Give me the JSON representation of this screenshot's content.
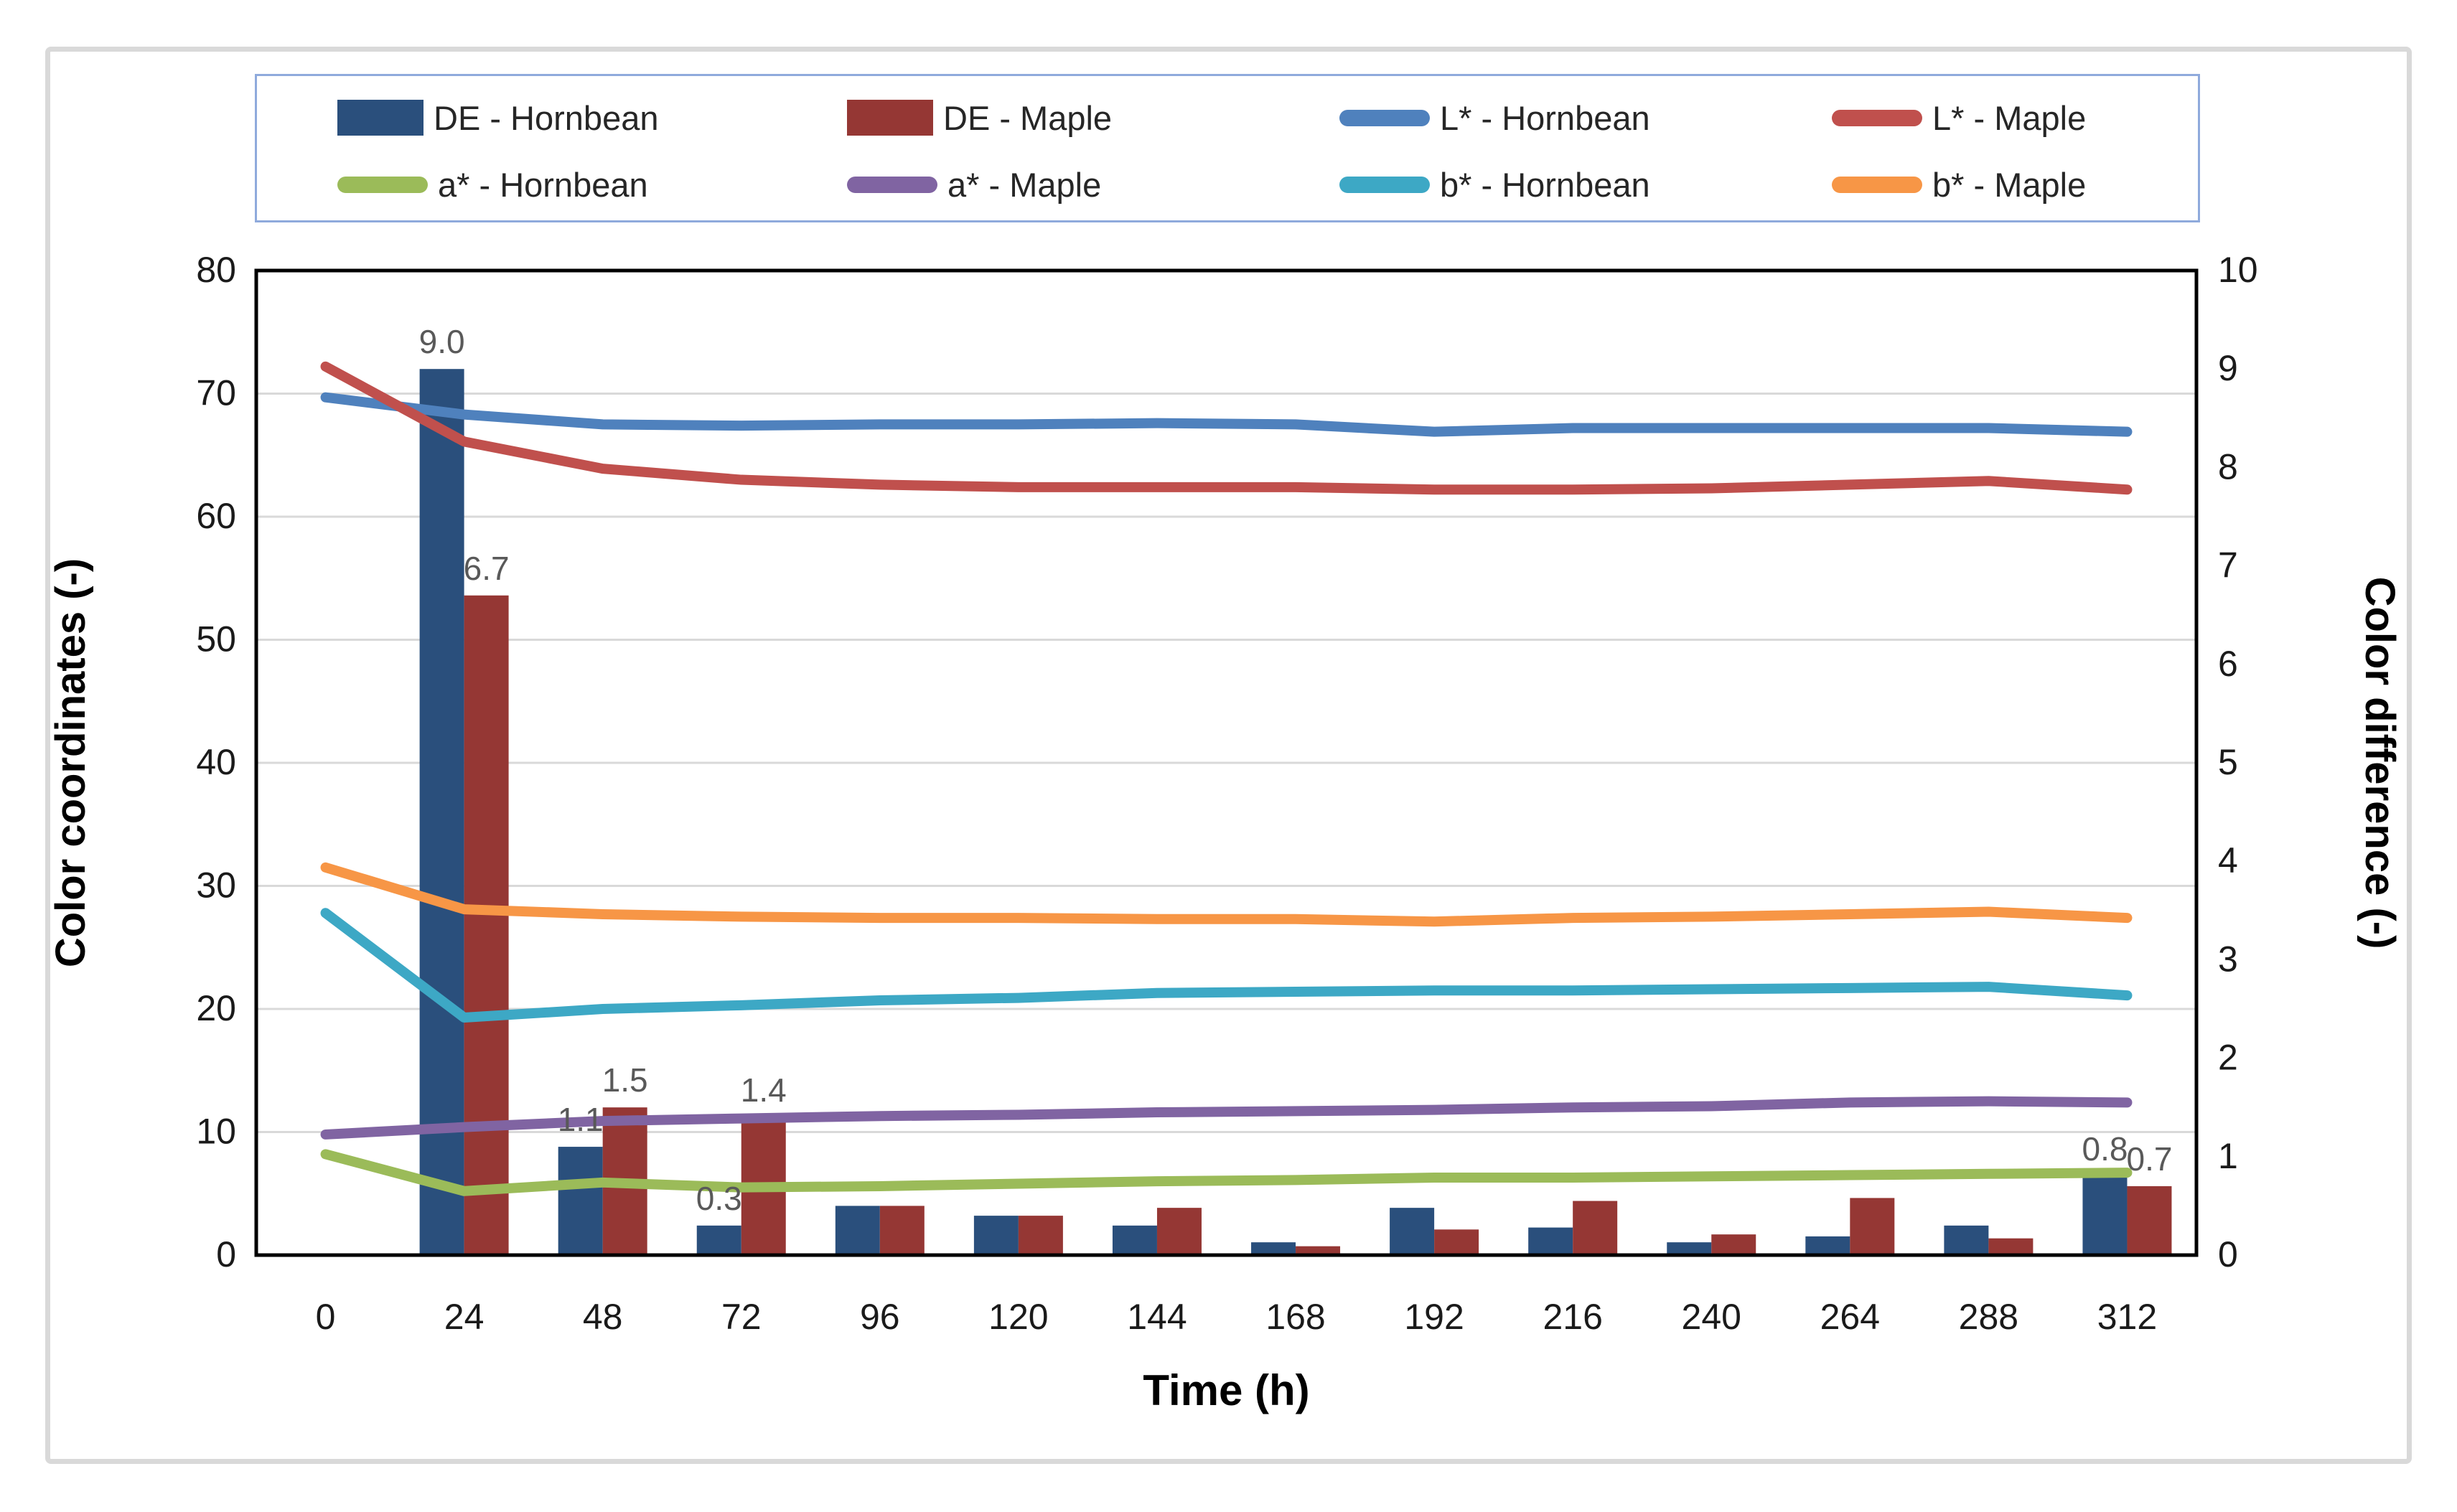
{
  "chart_data": {
    "type": "combo-bar-line",
    "x_axis": {
      "title": "Time (h)",
      "categories": [
        "0",
        "24",
        "48",
        "72",
        "96",
        "120",
        "144",
        "168",
        "192",
        "216",
        "240",
        "264",
        "288",
        "312"
      ]
    },
    "left_axis": {
      "title": "Color coordinates (-)",
      "min": 0,
      "max": 80,
      "step": 10
    },
    "right_axis": {
      "title": "Color difference (-)",
      "min": 0,
      "max": 10,
      "step": 1
    },
    "grid": "horizontal-on",
    "legend_position": "top",
    "bar_series": [
      {
        "name": "DE - Hornbean",
        "color": "#2a4f7c",
        "axis": "right",
        "values": [
          null,
          9.0,
          1.1,
          0.3,
          0.5,
          0.4,
          0.3,
          0.13,
          0.48,
          0.28,
          0.13,
          0.19,
          0.3,
          0.8
        ],
        "data_labels": [
          "",
          "9.0",
          "1.1",
          "0.3",
          "",
          "",
          "",
          "",
          "",
          "",
          "",
          "",
          "",
          "0.8"
        ]
      },
      {
        "name": "DE - Maple",
        "color": "#953734",
        "axis": "right",
        "values": [
          null,
          6.7,
          1.5,
          1.4,
          0.5,
          0.4,
          0.48,
          0.09,
          0.26,
          0.55,
          0.21,
          0.58,
          0.17,
          0.7
        ],
        "data_labels": [
          "",
          "6.7",
          "1.5",
          "1.4",
          "",
          "",
          "",
          "",
          "",
          "",
          "",
          "",
          "",
          "0.7"
        ]
      }
    ],
    "line_series": [
      {
        "name": "L* - Hornbean",
        "color": "#4f81bd",
        "axis": "left",
        "values": [
          69.7,
          68.3,
          67.5,
          67.4,
          67.5,
          67.5,
          67.6,
          67.5,
          66.9,
          67.2,
          67.2,
          67.2,
          67.2,
          66.9
        ]
      },
      {
        "name": "L* - Maple",
        "color": "#c0504d",
        "axis": "left",
        "values": [
          72.2,
          66.1,
          63.9,
          63.0,
          62.6,
          62.4,
          62.4,
          62.4,
          62.2,
          62.2,
          62.3,
          62.6,
          62.9,
          62.2
        ]
      },
      {
        "name": "a* - Hornbean",
        "color": "#9bbb59",
        "axis": "left",
        "values": [
          8.2,
          5.2,
          5.9,
          5.5,
          5.6,
          5.8,
          6.0,
          6.1,
          6.3,
          6.3,
          6.4,
          6.5,
          6.6,
          6.7
        ]
      },
      {
        "name": "a* - Maple",
        "color": "#8064a2",
        "axis": "left",
        "values": [
          9.8,
          10.4,
          10.9,
          11.1,
          11.3,
          11.4,
          11.6,
          11.7,
          11.8,
          12.0,
          12.1,
          12.4,
          12.5,
          12.4
        ]
      },
      {
        "name": "b* - Hornbean",
        "color": "#3da8c5",
        "axis": "left",
        "values": [
          27.8,
          19.3,
          20.0,
          20.3,
          20.7,
          20.9,
          21.3,
          21.4,
          21.5,
          21.5,
          21.6,
          21.7,
          21.8,
          21.1
        ]
      },
      {
        "name": "b* - Maple",
        "color": "#f79646",
        "axis": "left",
        "values": [
          31.5,
          28.1,
          27.7,
          27.5,
          27.4,
          27.4,
          27.3,
          27.3,
          27.1,
          27.4,
          27.5,
          27.7,
          27.9,
          27.4
        ]
      }
    ],
    "style": {
      "grid_color": "#d9d9d9",
      "axis_color": "#000000",
      "tick_label_color": "#1a1a1a",
      "data_label_color": "#595959",
      "legend_border_color": "#8faadc",
      "outer_border_color": "#d9d9d9",
      "background": "#ffffff"
    }
  }
}
